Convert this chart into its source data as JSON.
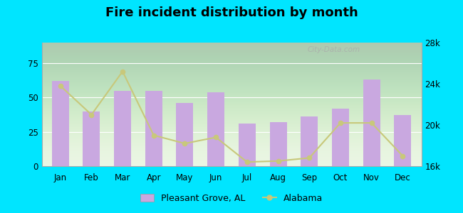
{
  "title": "Fire incident distribution by month",
  "months": [
    "Jan",
    "Feb",
    "Mar",
    "Apr",
    "May",
    "Jun",
    "Jul",
    "Aug",
    "Sep",
    "Oct",
    "Nov",
    "Dec"
  ],
  "bar_values": [
    62,
    40,
    55,
    55,
    46,
    54,
    31,
    32,
    36,
    42,
    63,
    37
  ],
  "line_values": [
    23800,
    21000,
    25200,
    19000,
    18200,
    18800,
    16400,
    16500,
    16800,
    20200,
    20200,
    17000
  ],
  "bar_color": "#c9a8e0",
  "line_color": "#c8c87a",
  "outer_bg": "#00e5ff",
  "plot_bg": "#e8f5e0",
  "yleft_min": 0,
  "yleft_max": 90,
  "yright_min": 16000,
  "yright_max": 28000,
  "yticks_left": [
    0,
    25,
    50,
    75
  ],
  "yticks_right": [
    16000,
    20000,
    24000,
    28000
  ],
  "ytick_labels_right": [
    "16k",
    "20k",
    "24k",
    "28k"
  ],
  "legend_label_bar": "Pleasant Grove, AL",
  "legend_label_line": "Alabama",
  "watermark": "City-Data.com",
  "title_fontsize": 13,
  "bar_width": 0.55
}
